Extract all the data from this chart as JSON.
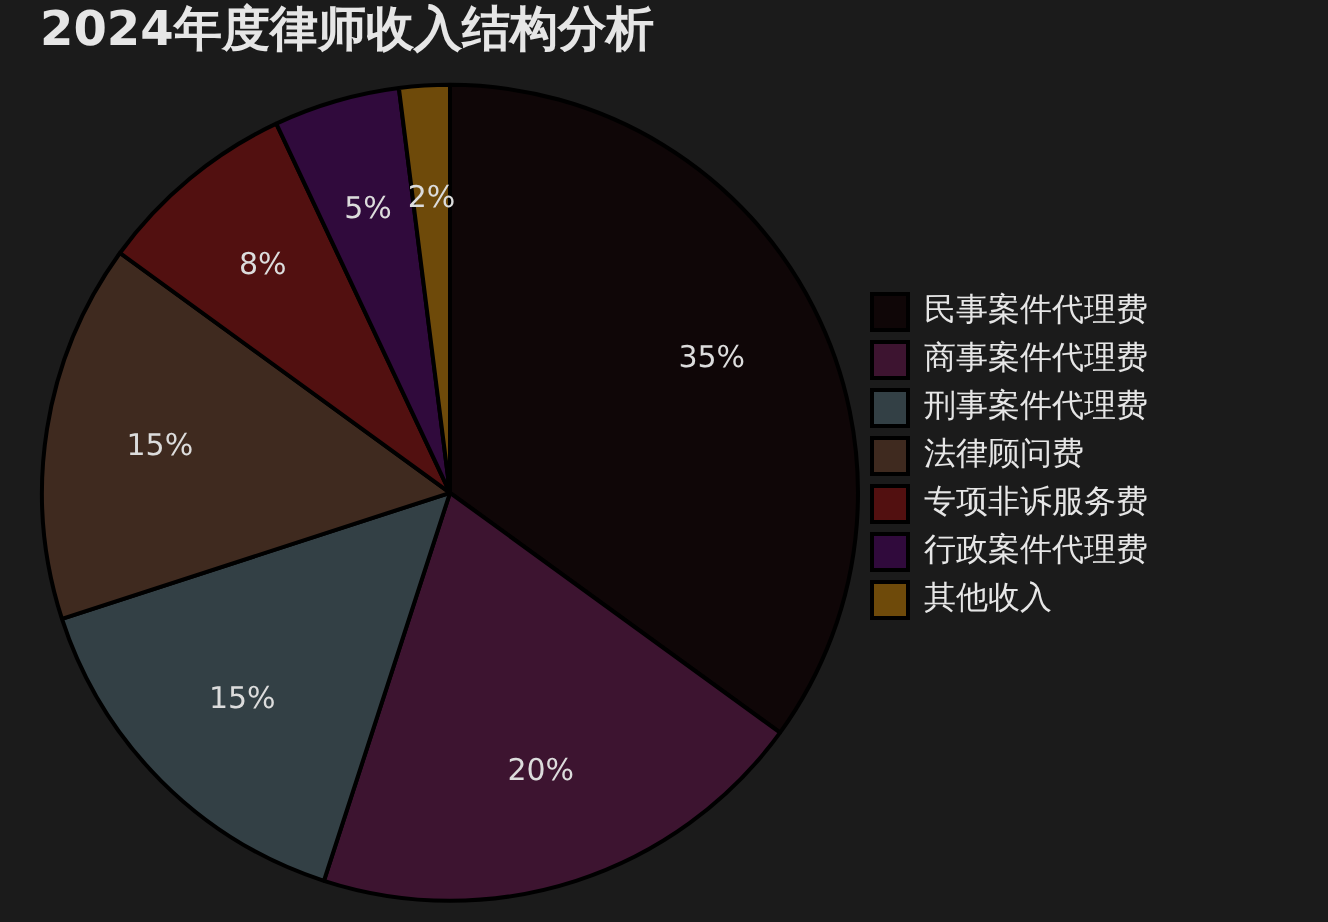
{
  "chart_data": {
    "type": "pie",
    "title": "2024年度律师收入结构分析",
    "categories": [
      "民事案件代理费",
      "商事案件代理费",
      "刑事案件代理费",
      "法律顾问费",
      "专项非诉服务费",
      "行政案件代理费",
      "其他收入"
    ],
    "values": [
      35,
      20,
      15,
      15,
      8,
      5,
      2
    ],
    "colors": [
      "#0f0607",
      "#3d1430",
      "#334045",
      "#3f2a1f",
      "#521010",
      "#300a3c",
      "#6e4a0a"
    ],
    "value_labels": [
      "35%",
      "20%",
      "15%",
      "15%",
      "8%",
      "5%",
      "2%"
    ],
    "legend": "right"
  }
}
